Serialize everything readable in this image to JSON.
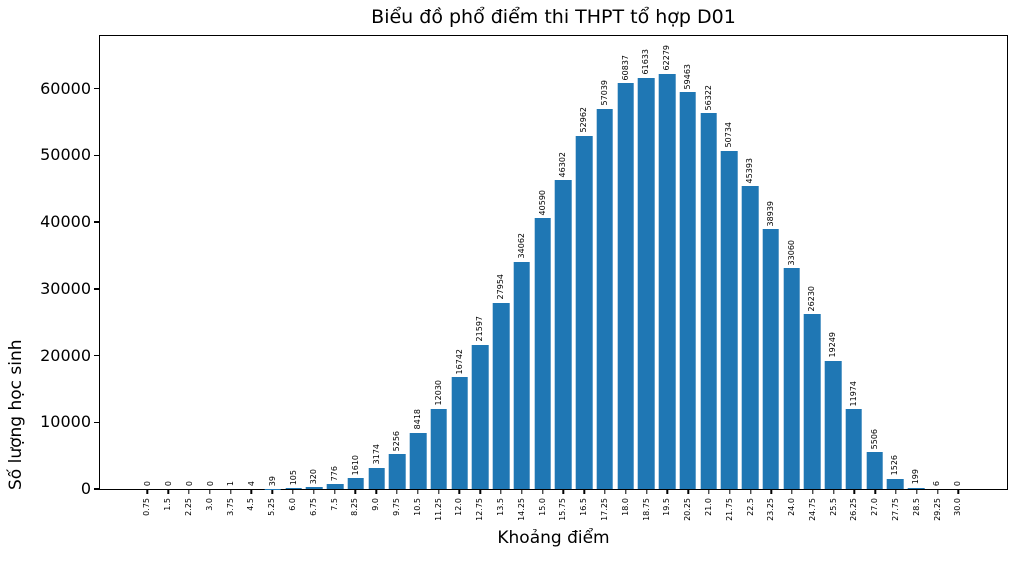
{
  "chart_data": {
    "type": "bar",
    "title": "Biểu đồ phổ điểm thi THPT tổ hợp D01",
    "xlabel": "Khoảng điểm",
    "ylabel": "Số lượng học sinh",
    "bar_color": "#1f77b4",
    "grid": false,
    "legend": null,
    "xtick_rotation": 90,
    "bar_value_label_rotation": 90,
    "categories": [
      "0.75",
      "1.5",
      "2.25",
      "3.0",
      "3.75",
      "4.5",
      "5.25",
      "6.0",
      "6.75",
      "7.5",
      "8.25",
      "9.0",
      "9.75",
      "10.5",
      "11.25",
      "12.0",
      "12.75",
      "13.5",
      "14.25",
      "15.0",
      "15.75",
      "16.5",
      "17.25",
      "18.0",
      "18.75",
      "19.5",
      "20.25",
      "21.0",
      "21.75",
      "22.5",
      "23.25",
      "24.0",
      "24.75",
      "25.5",
      "26.25",
      "27.0",
      "27.75",
      "28.5",
      "29.25",
      "30.0"
    ],
    "values": [
      0,
      0,
      0,
      0,
      1,
      4,
      39,
      105,
      320,
      776,
      1610,
      3174,
      5256,
      8418,
      12030,
      16742,
      21597,
      27954,
      34062,
      40590,
      46302,
      52962,
      57039,
      60837,
      61633,
      62279,
      59463,
      56322,
      50734,
      45393,
      38939,
      33060,
      26230,
      19249,
      11974,
      5506,
      1526,
      199,
      6,
      0
    ],
    "yticks": [
      0,
      10000,
      20000,
      30000,
      40000,
      50000,
      60000
    ],
    "ylim": [
      0,
      67900
    ]
  }
}
